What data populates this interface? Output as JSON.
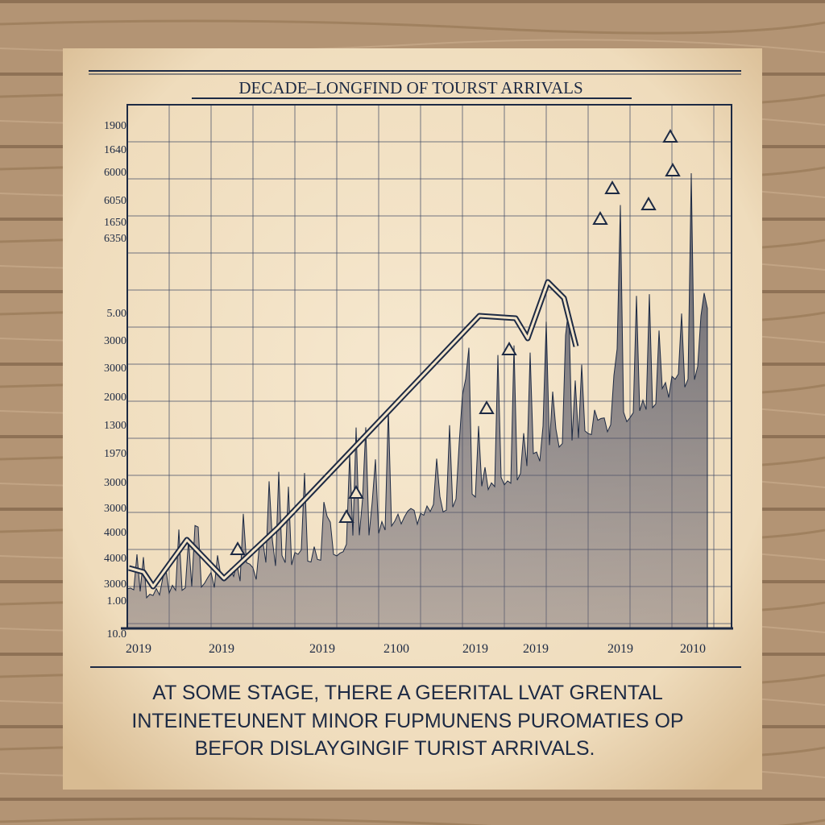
{
  "header": {
    "title": "DECADE–LONGFIND OF TOURST ARRIVALS"
  },
  "y_labels": [
    "1900",
    "1640",
    "6000",
    "6050",
    "1650",
    "6350",
    "5.00",
    "3000",
    "3000",
    "2000",
    "1300",
    "1970",
    "3000",
    "3000",
    "4000",
    "4000",
    "3000",
    "1.00",
    "10.0"
  ],
  "x_labels": [
    "2019",
    "2019",
    "2019",
    "2100",
    "2019",
    "2019",
    "2019",
    "2010"
  ],
  "caption": [
    "AT SOME STAGE, THERE  A GEERITAL LVAT GRENTAL",
    "INTEINETEUNENT  MINOR FUPMUNENS  PUROMATIES   OP",
    "BEFOR DISLAYGINGIF TURIST ARRIVALS."
  ]
}
